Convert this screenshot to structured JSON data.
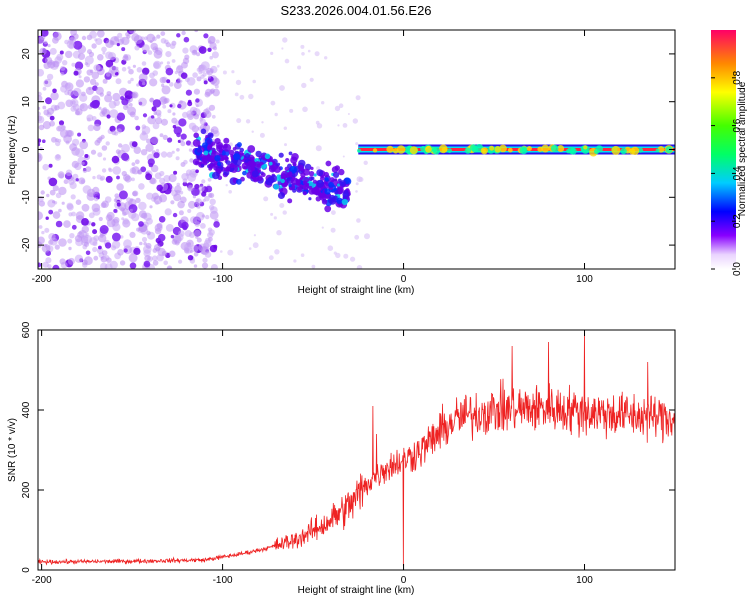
{
  "title": "S233.2026.004.01.56.E26",
  "chart_data": [
    {
      "type": "heatmap",
      "xlabel": "Height of straight line (km)",
      "ylabel": "Frequency (Hz)",
      "xlim": [
        -202,
        150
      ],
      "ylim": [
        -25,
        25
      ],
      "xticks": [
        -200,
        -100,
        0,
        100
      ],
      "xtick_labels": [
        "-200",
        "-100",
        "0",
        "100"
      ],
      "yticks": [
        -20,
        -10,
        0,
        10,
        20
      ],
      "ytick_labels": [
        "-20",
        "-10",
        "0",
        "10",
        "20"
      ],
      "colorbar": {
        "label": "Normalized spectral amplitude",
        "range": [
          0,
          1
        ],
        "ticks": [
          0.0,
          0.2,
          0.4,
          0.6,
          0.8
        ],
        "tick_labels": [
          "0.0",
          "0.2",
          "0.4",
          "0.6",
          "0.8"
        ]
      },
      "regions": [
        {
          "name": "diffuse noise",
          "x": [
            -202,
            -103
          ],
          "freq_spread": 25,
          "amplitude": 0.05
        },
        {
          "name": "sparse noise",
          "x": [
            -103,
            -20
          ],
          "freq_spread": 25,
          "amplitude": 0.02
        },
        {
          "name": "descending cluster",
          "x": [
            -115,
            -30
          ],
          "freq_center": [
            0,
            -9
          ],
          "amplitude": 0.25
        },
        {
          "name": "carrier line",
          "x": [
            -25,
            150
          ],
          "freq_center": 0,
          "amplitude": 1.0
        }
      ]
    },
    {
      "type": "line",
      "xlabel": "Height of straight line (km)",
      "ylabel": "SNR (10 * v/v)",
      "xlim": [
        -202,
        150
      ],
      "ylim": [
        0,
        600
      ],
      "xticks": [
        -200,
        -100,
        0,
        100
      ],
      "xtick_labels": [
        "-200",
        "-100",
        "0",
        "100"
      ],
      "yticks": [
        0,
        200,
        400,
        600
      ],
      "ytick_labels": [
        "0",
        "200",
        "400",
        "600"
      ],
      "color": "#ee2222",
      "series": [
        {
          "name": "SNR",
          "x": [
            -202,
            -150,
            -110,
            -90,
            -75,
            -60,
            -45,
            -30,
            -20,
            -10,
            0,
            10,
            20,
            30,
            50,
            80,
            100,
            130,
            150
          ],
          "values": [
            20,
            22,
            25,
            40,
            55,
            75,
            110,
            160,
            215,
            255,
            275,
            300,
            345,
            380,
            400,
            405,
            395,
            385,
            380
          ],
          "spikes": [
            {
              "x": -17,
              "value": 410
            },
            {
              "x": -15,
              "value": 340
            },
            {
              "x": -1,
              "value": 270
            },
            {
              "x": 0,
              "value": 10
            },
            {
              "x": 60,
              "value": 560
            },
            {
              "x": 80,
              "value": 570
            },
            {
              "x": 100,
              "value": 600
            },
            {
              "x": 135,
              "value": 520
            }
          ]
        }
      ]
    }
  ]
}
